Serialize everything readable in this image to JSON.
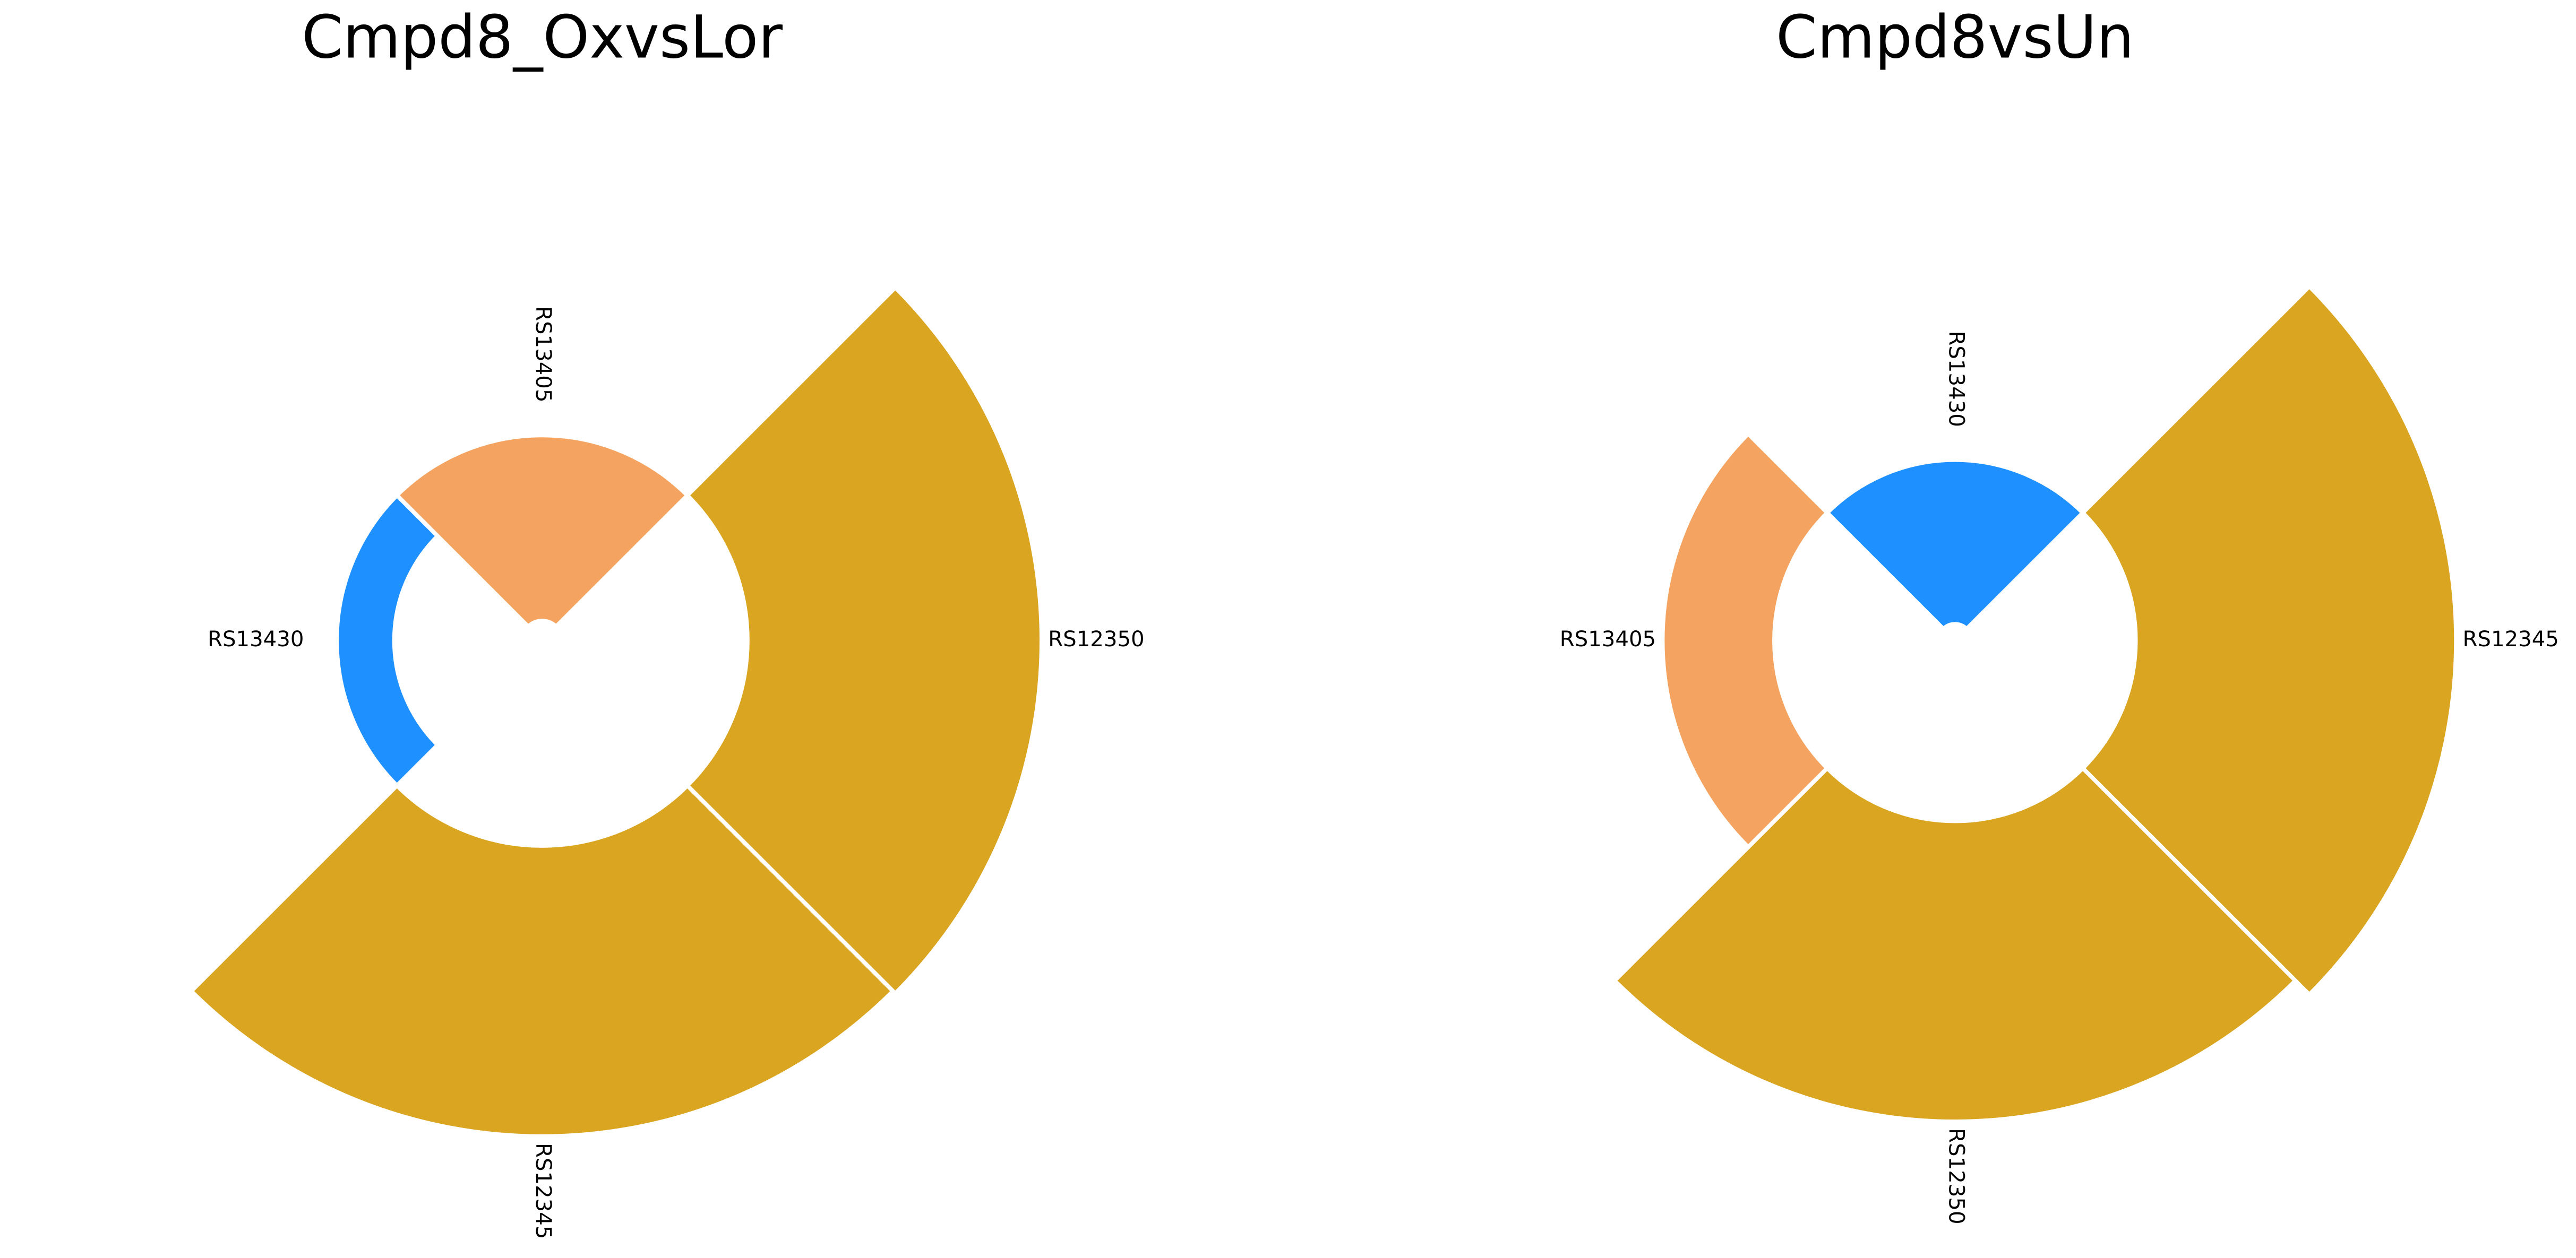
{
  "chart_data": [
    {
      "type": "polar-bar",
      "title": "Cmpd8_OxvsLor",
      "categories": [
        "RS12350",
        "RS13405",
        "RS13430",
        "RS12345"
      ],
      "values": [
        179,
        -113,
        -35,
        177
      ],
      "colors": [
        "#DAA520",
        "#F4A460",
        "#1E90FF",
        "#DAA520"
      ],
      "rlim": [
        -125,
        180
      ]
    },
    {
      "type": "polar-bar",
      "title": "Cmpd8vsUn",
      "categories": [
        "RS12345",
        "RS13430",
        "RS13405",
        "RS12350"
      ],
      "values": [
        195,
        -100,
        68,
        183
      ],
      "colors": [
        "#DAA520",
        "#1E90FF",
        "#F4A460",
        "#DAA520"
      ],
      "rlim": [
        -110,
        195
      ]
    }
  ]
}
